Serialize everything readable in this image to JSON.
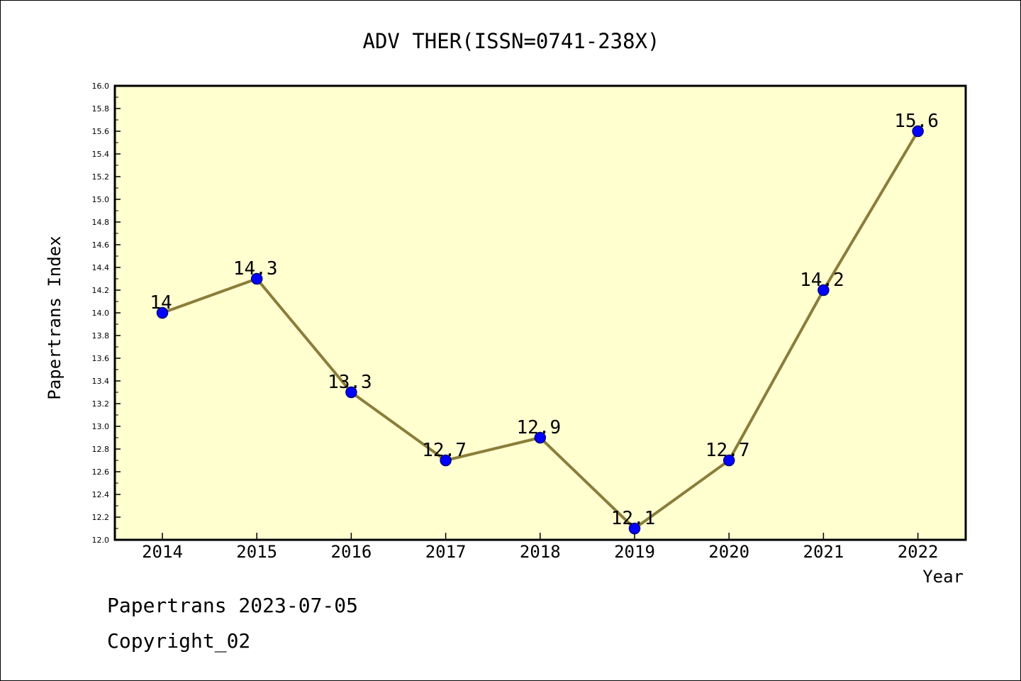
{
  "chart_data": {
    "type": "line",
    "title": "ADV THER(ISSN=0741-238X)",
    "xlabel": "Year",
    "ylabel": "Papertrans Index",
    "categories": [
      "2014",
      "2015",
      "2016",
      "2017",
      "2018",
      "2019",
      "2020",
      "2021",
      "2022"
    ],
    "series": [
      {
        "values": [
          14,
          14.3,
          13.3,
          12.7,
          12.9,
          12.1,
          12.7,
          14.2,
          15.6
        ],
        "data_labels": [
          "14",
          "14.3",
          "13.3",
          "12.7",
          "12.9",
          "12.1",
          "12.7",
          "14.2",
          "15.6"
        ]
      }
    ],
    "ylim": [
      12.0,
      16.0
    ],
    "yticks": [
      "12.0",
      "12.2",
      "12.4",
      "12.6",
      "12.8",
      "13.0",
      "13.2",
      "13.4",
      "13.6",
      "13.8",
      "14.0",
      "14.2",
      "14.4",
      "14.6",
      "14.8",
      "15.0",
      "15.2",
      "15.4",
      "15.6",
      "15.8",
      "16.0"
    ],
    "grid": false,
    "legend": "none",
    "colors": {
      "plot_background": "#ffffd0",
      "line": "#8b7d3a",
      "marker_fill": "#0000ff",
      "marker_stroke": "#000080",
      "axis": "#000000"
    }
  },
  "footer": {
    "date_line": "Papertrans 2023-07-05",
    "copyright_line": "Copyright_02"
  }
}
